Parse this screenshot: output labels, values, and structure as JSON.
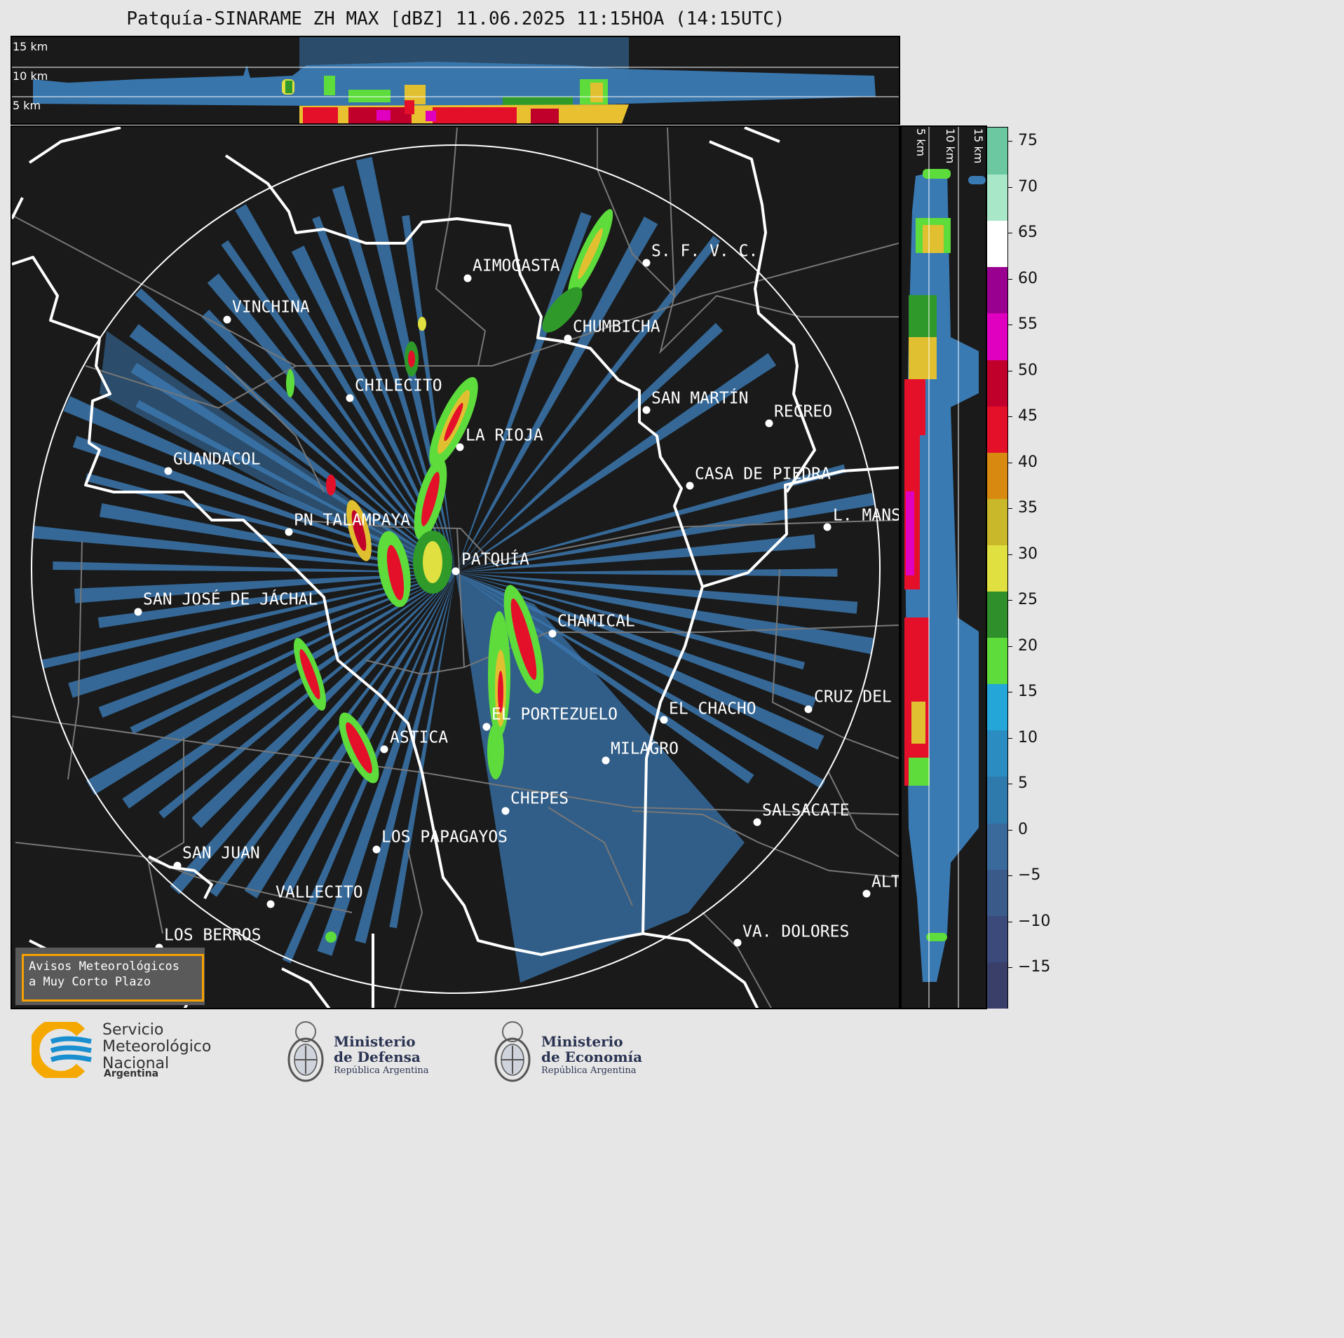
{
  "title": "Patquía-SINARAME ZH MAX [dBZ] 11.06.2025 11:15HOA (14:15UTC)",
  "top_panel": {
    "height_labels": [
      "15 km",
      "10 km",
      "5 km"
    ]
  },
  "side_panel": {
    "height_labels": [
      "5 km",
      "10 km",
      "15 km"
    ]
  },
  "map": {
    "radar_site": "PATQUÍA",
    "places": [
      "AIMOGASTA",
      "S. F. V. C.",
      "VINCHINA",
      "CHUMBICHA",
      "CHILECITO",
      "SAN MARTÍN",
      "RECREO",
      "LA RIOJA",
      "GUANDACOL",
      "CASA DE PIEDRA",
      "PN TALAMPAYA",
      "L. MANS",
      "PATQUÍA",
      "SAN JOSÉ DE JÁCHAL",
      "CHAMICAL",
      "CRUZ DEL",
      "EL CHACHO",
      "EL PORTEZUELO",
      "ASTICA",
      "MILAGRO",
      "CHEPES",
      "SALSACATE",
      "LOS PAPAGAYOS",
      "SAN JUAN",
      "VALLECITO",
      "ALT",
      "LOS BERROS",
      "VA. DOLORES"
    ]
  },
  "colorbar": {
    "ticks": [
      "75",
      "70",
      "65",
      "60",
      "55",
      "50",
      "45",
      "40",
      "35",
      "30",
      "25",
      "20",
      "15",
      "10",
      "5",
      "0",
      "−5",
      "−10",
      "−15"
    ],
    "colors": [
      "#3a3f6a",
      "#3b4a7a",
      "#3a5a8a",
      "#3a6a9c",
      "#2f7aad",
      "#2a8cc0",
      "#24a6d8",
      "#5ddc3c",
      "#2f8f2a",
      "#e0e040",
      "#c8b82a",
      "#d88a10",
      "#e4102a",
      "#c0002a",
      "#e000c0",
      "#9a0090",
      "#ffffff",
      "#a8e8c8",
      "#6cc8a0"
    ]
  },
  "notice": {
    "line1": "Avisos Meteorológicos",
    "line2": "a Muy Corto Plazo"
  },
  "logos": {
    "smn": {
      "line1": "Servicio",
      "line2": "Meteorológico",
      "line3": "Nacional",
      "line4": "Argentina"
    },
    "defensa": {
      "line1": "Ministerio",
      "line2": "de Defensa",
      "line3": "República Argentina"
    },
    "economia": {
      "line1": "Ministerio",
      "line2": "de Economía",
      "line3": "República Argentina"
    }
  }
}
